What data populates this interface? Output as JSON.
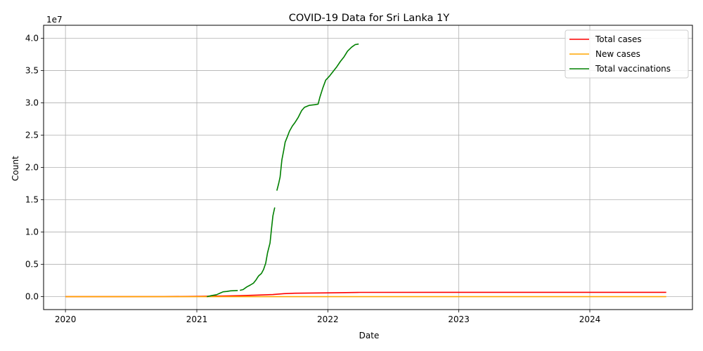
{
  "chart_data": {
    "type": "line",
    "title": "COVID-19 Data for Sri Lanka 1Y",
    "xlabel": "Date",
    "ylabel": "Count",
    "y_scale_label": "1e7",
    "x_axis": "date",
    "xlim": [
      "2019-11-01",
      "2024-10-13"
    ],
    "ylim": [
      -2000000,
      42000000
    ],
    "x_ticks": [
      "2020-01-01",
      "2021-01-01",
      "2022-01-01",
      "2023-01-01",
      "2024-01-01"
    ],
    "x_tick_labels": [
      "2020",
      "2021",
      "2022",
      "2023",
      "2024"
    ],
    "y_ticks": [
      0,
      5000000,
      10000000,
      15000000,
      20000000,
      25000000,
      30000000,
      35000000,
      40000000
    ],
    "y_tick_labels": [
      "0.0",
      "0.5",
      "1.0",
      "1.5",
      "2.0",
      "2.5",
      "3.0",
      "3.5",
      "4.0"
    ],
    "grid": true,
    "legend_position": "top-right",
    "series": [
      {
        "name": "Total cases",
        "color": "#ff0000",
        "points": [
          [
            "2020-01-01",
            0
          ],
          [
            "2020-06-01",
            2000
          ],
          [
            "2020-10-01",
            5000
          ],
          [
            "2021-01-01",
            45000
          ],
          [
            "2021-03-01",
            88000
          ],
          [
            "2021-05-01",
            150000
          ],
          [
            "2021-06-15",
            240000
          ],
          [
            "2021-08-01",
            330000
          ],
          [
            "2021-09-01",
            470000
          ],
          [
            "2021-10-01",
            530000
          ],
          [
            "2022-01-01",
            590000
          ],
          [
            "2022-04-01",
            662000
          ],
          [
            "2023-01-01",
            672000
          ],
          [
            "2024-01-01",
            672700
          ],
          [
            "2024-08-01",
            672800
          ]
        ]
      },
      {
        "name": "New cases",
        "color": "#ffa500",
        "points": [
          [
            "2020-01-01",
            0
          ],
          [
            "2021-01-01",
            0
          ],
          [
            "2021-06-01",
            3000
          ],
          [
            "2021-09-01",
            4000
          ],
          [
            "2022-01-01",
            1000
          ],
          [
            "2023-01-01",
            0
          ],
          [
            "2024-08-01",
            0
          ]
        ]
      },
      {
        "name": "Total vaccinations",
        "color": "#008000",
        "segments": [
          [
            [
              "2021-01-29",
              0
            ],
            [
              "2021-02-10",
              150000
            ],
            [
              "2021-02-25",
              300000
            ],
            [
              "2021-03-05",
              500000
            ],
            [
              "2021-03-15",
              750000
            ],
            [
              "2021-03-25",
              800000
            ],
            [
              "2021-04-05",
              900000
            ],
            [
              "2021-04-15",
              920000
            ],
            [
              "2021-04-25",
              950000
            ]
          ],
          [
            [
              "2021-05-01",
              980000
            ],
            [
              "2021-05-10",
              1100000
            ],
            [
              "2021-05-20",
              1500000
            ],
            [
              "2021-05-30",
              1800000
            ],
            [
              "2021-06-08",
              2100000
            ],
            [
              "2021-06-15",
              2600000
            ],
            [
              "2021-06-22",
              3200000
            ],
            [
              "2021-06-30",
              3600000
            ],
            [
              "2021-07-06",
              4200000
            ],
            [
              "2021-07-12",
              5200000
            ],
            [
              "2021-07-17",
              6800000
            ],
            [
              "2021-07-24",
              8300000
            ],
            [
              "2021-07-28",
              10500000
            ],
            [
              "2021-08-01",
              12500000
            ],
            [
              "2021-08-06",
              13800000
            ]
          ],
          [
            [
              "2021-08-12",
              16400000
            ],
            [
              "2021-08-17",
              17500000
            ],
            [
              "2021-08-21",
              18500000
            ],
            [
              "2021-08-26",
              21200000
            ],
            [
              "2021-08-31",
              22600000
            ],
            [
              "2021-09-04",
              23900000
            ],
            [
              "2021-09-10",
              24700000
            ],
            [
              "2021-09-16",
              25600000
            ],
            [
              "2021-09-24",
              26400000
            ],
            [
              "2021-10-02",
              27000000
            ],
            [
              "2021-10-10",
              27700000
            ],
            [
              "2021-10-20",
              28800000
            ],
            [
              "2021-10-28",
              29300000
            ],
            [
              "2021-11-10",
              29600000
            ],
            [
              "2021-11-25",
              29700000
            ],
            [
              "2021-12-05",
              29800000
            ],
            [
              "2021-12-10",
              30900000
            ],
            [
              "2021-12-18",
              32300000
            ],
            [
              "2021-12-26",
              33500000
            ],
            [
              "2022-01-05",
              34100000
            ],
            [
              "2022-01-15",
              34800000
            ],
            [
              "2022-01-25",
              35500000
            ],
            [
              "2022-02-05",
              36400000
            ],
            [
              "2022-02-15",
              37100000
            ],
            [
              "2022-02-25",
              38000000
            ],
            [
              "2022-03-08",
              38600000
            ],
            [
              "2022-03-18",
              39000000
            ],
            [
              "2022-03-28",
              39100000
            ]
          ]
        ]
      }
    ]
  }
}
